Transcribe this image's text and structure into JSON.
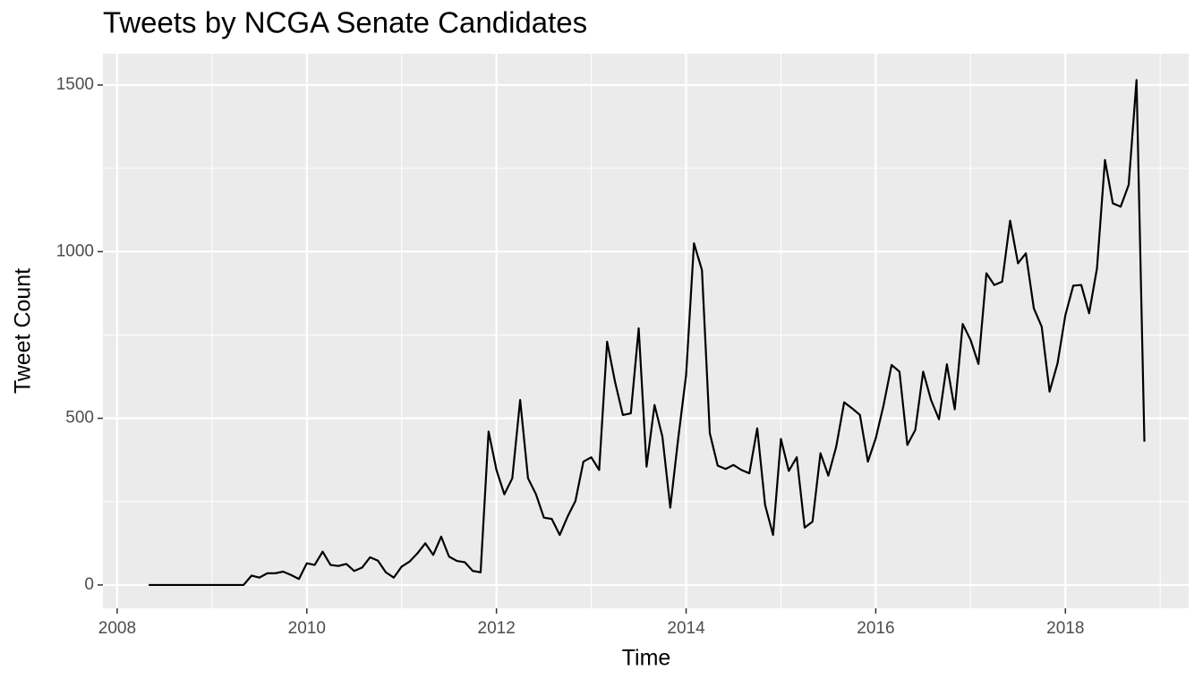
{
  "chart_data": {
    "type": "line",
    "title": "Tweets by NCGA Senate Candidates",
    "x_label": "Time",
    "y_label": "Tweet Count",
    "x": [
      2008.333,
      2008.417,
      2008.5,
      2008.583,
      2008.667,
      2008.75,
      2008.833,
      2008.917,
      2009,
      2009.083,
      2009.167,
      2009.25,
      2009.333,
      2009.417,
      2009.5,
      2009.583,
      2009.667,
      2009.75,
      2009.833,
      2009.917,
      2010,
      2010.083,
      2010.167,
      2010.25,
      2010.333,
      2010.417,
      2010.5,
      2010.583,
      2010.667,
      2010.75,
      2010.833,
      2010.917,
      2011,
      2011.083,
      2011.167,
      2011.25,
      2011.333,
      2011.417,
      2011.5,
      2011.583,
      2011.667,
      2011.75,
      2011.833,
      2011.917,
      2012,
      2012.083,
      2012.167,
      2012.25,
      2012.333,
      2012.417,
      2012.5,
      2012.583,
      2012.667,
      2012.75,
      2012.833,
      2012.917,
      2013,
      2013.083,
      2013.167,
      2013.25,
      2013.333,
      2013.417,
      2013.5,
      2013.583,
      2013.667,
      2013.75,
      2013.833,
      2013.917,
      2014,
      2014.083,
      2014.167,
      2014.25,
      2014.333,
      2014.417,
      2014.5,
      2014.583,
      2014.667,
      2014.75,
      2014.833,
      2014.917,
      2015,
      2015.083,
      2015.167,
      2015.25,
      2015.333,
      2015.417,
      2015.5,
      2015.583,
      2015.667,
      2015.75,
      2015.833,
      2015.917,
      2016,
      2016.083,
      2016.167,
      2016.25,
      2016.333,
      2016.417,
      2016.5,
      2016.583,
      2016.667,
      2016.75,
      2016.833,
      2016.917,
      2017,
      2017.083,
      2017.167,
      2017.25,
      2017.333,
      2017.417,
      2017.5,
      2017.583,
      2017.667,
      2017.75,
      2017.833,
      2017.917,
      2018,
      2018.083,
      2018.167,
      2018.25,
      2018.333,
      2018.417,
      2018.5,
      2018.583,
      2018.667,
      2018.75,
      2018.833
    ],
    "series": [
      {
        "color": "#000000",
        "values": [
          0,
          0,
          0,
          0,
          0,
          0,
          0,
          0,
          0,
          0,
          0,
          0,
          0,
          28,
          22,
          35,
          35,
          40,
          30,
          18,
          65,
          60,
          100,
          60,
          57,
          63,
          42,
          52,
          83,
          73,
          38,
          22,
          55,
          70,
          95,
          125,
          90,
          145,
          85,
          72,
          68,
          42,
          38,
          460,
          345,
          272,
          320,
          555,
          320,
          272,
          202,
          198,
          150,
          205,
          252,
          370,
          383,
          345,
          730,
          610,
          510,
          515,
          770,
          355,
          540,
          445,
          232,
          440,
          630,
          1025,
          945,
          455,
          358,
          348,
          360,
          345,
          335,
          470,
          240,
          150,
          438,
          342,
          383,
          172,
          190,
          395,
          328,
          415,
          548,
          530,
          510,
          370,
          440,
          540,
          660,
          640,
          420,
          465,
          640,
          555,
          497,
          662,
          527,
          783,
          735,
          663,
          935,
          900,
          910,
          1093,
          965,
          995,
          830,
          775,
          580,
          665,
          810,
          898,
          900,
          815,
          950,
          1275,
          1145,
          1135,
          1200,
          1515,
          430
        ]
      }
    ],
    "xlim": [
      2007.85,
      2019.3
    ],
    "xticks": [
      2008,
      2010,
      2012,
      2014,
      2016,
      2018
    ],
    "ylim": [
      -70,
      1594
    ],
    "yticks": [
      0,
      500,
      1000,
      1500
    ],
    "grid": true
  }
}
